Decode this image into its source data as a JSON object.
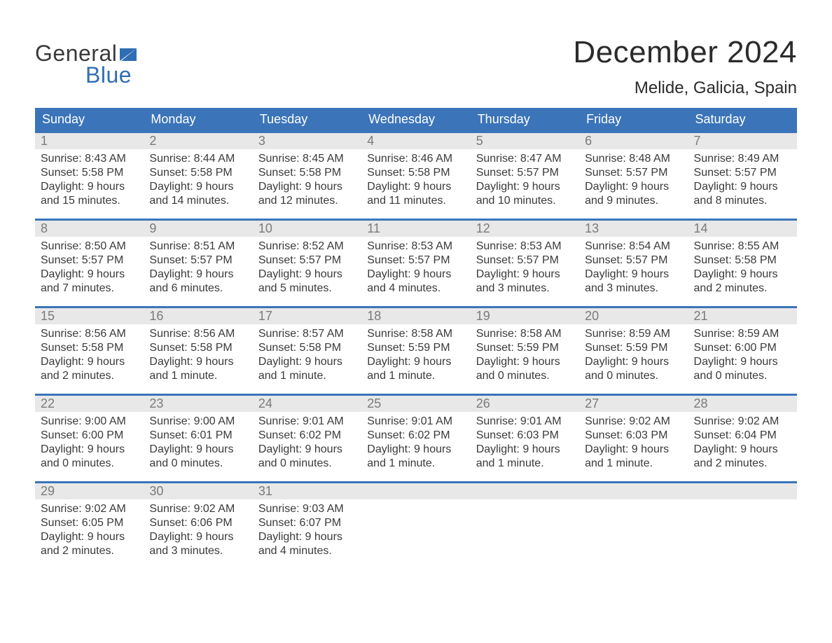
{
  "logo": {
    "text_general": "General",
    "text_blue": "Blue",
    "flag_color": "#2f6eb5"
  },
  "title": "December 2024",
  "location": "Melide, Galicia, Spain",
  "colors": {
    "header_bg": "#3b74b9",
    "header_text": "#ffffff",
    "row_border": "#3b74b9",
    "daynum_bg": "#e8e8e8",
    "daynum_text": "#7a7a7a",
    "body_text": "#3a3a3a",
    "page_bg": "#ffffff",
    "logo_blue": "#2f6eb5"
  },
  "typography": {
    "title_fontsize": 44,
    "location_fontsize": 24,
    "dow_fontsize": 18,
    "daynum_fontsize": 18,
    "body_fontsize": 16,
    "logo_fontsize": 32
  },
  "days_of_week": [
    "Sunday",
    "Monday",
    "Tuesday",
    "Wednesday",
    "Thursday",
    "Friday",
    "Saturday"
  ],
  "weeks": [
    [
      {
        "n": "1",
        "sr": "Sunrise: 8:43 AM",
        "ss": "Sunset: 5:58 PM",
        "dl1": "Daylight: 9 hours",
        "dl2": "and 15 minutes."
      },
      {
        "n": "2",
        "sr": "Sunrise: 8:44 AM",
        "ss": "Sunset: 5:58 PM",
        "dl1": "Daylight: 9 hours",
        "dl2": "and 14 minutes."
      },
      {
        "n": "3",
        "sr": "Sunrise: 8:45 AM",
        "ss": "Sunset: 5:58 PM",
        "dl1": "Daylight: 9 hours",
        "dl2": "and 12 minutes."
      },
      {
        "n": "4",
        "sr": "Sunrise: 8:46 AM",
        "ss": "Sunset: 5:58 PM",
        "dl1": "Daylight: 9 hours",
        "dl2": "and 11 minutes."
      },
      {
        "n": "5",
        "sr": "Sunrise: 8:47 AM",
        "ss": "Sunset: 5:57 PM",
        "dl1": "Daylight: 9 hours",
        "dl2": "and 10 minutes."
      },
      {
        "n": "6",
        "sr": "Sunrise: 8:48 AM",
        "ss": "Sunset: 5:57 PM",
        "dl1": "Daylight: 9 hours",
        "dl2": "and 9 minutes."
      },
      {
        "n": "7",
        "sr": "Sunrise: 8:49 AM",
        "ss": "Sunset: 5:57 PM",
        "dl1": "Daylight: 9 hours",
        "dl2": "and 8 minutes."
      }
    ],
    [
      {
        "n": "8",
        "sr": "Sunrise: 8:50 AM",
        "ss": "Sunset: 5:57 PM",
        "dl1": "Daylight: 9 hours",
        "dl2": "and 7 minutes."
      },
      {
        "n": "9",
        "sr": "Sunrise: 8:51 AM",
        "ss": "Sunset: 5:57 PM",
        "dl1": "Daylight: 9 hours",
        "dl2": "and 6 minutes."
      },
      {
        "n": "10",
        "sr": "Sunrise: 8:52 AM",
        "ss": "Sunset: 5:57 PM",
        "dl1": "Daylight: 9 hours",
        "dl2": "and 5 minutes."
      },
      {
        "n": "11",
        "sr": "Sunrise: 8:53 AM",
        "ss": "Sunset: 5:57 PM",
        "dl1": "Daylight: 9 hours",
        "dl2": "and 4 minutes."
      },
      {
        "n": "12",
        "sr": "Sunrise: 8:53 AM",
        "ss": "Sunset: 5:57 PM",
        "dl1": "Daylight: 9 hours",
        "dl2": "and 3 minutes."
      },
      {
        "n": "13",
        "sr": "Sunrise: 8:54 AM",
        "ss": "Sunset: 5:57 PM",
        "dl1": "Daylight: 9 hours",
        "dl2": "and 3 minutes."
      },
      {
        "n": "14",
        "sr": "Sunrise: 8:55 AM",
        "ss": "Sunset: 5:58 PM",
        "dl1": "Daylight: 9 hours",
        "dl2": "and 2 minutes."
      }
    ],
    [
      {
        "n": "15",
        "sr": "Sunrise: 8:56 AM",
        "ss": "Sunset: 5:58 PM",
        "dl1": "Daylight: 9 hours",
        "dl2": "and 2 minutes."
      },
      {
        "n": "16",
        "sr": "Sunrise: 8:56 AM",
        "ss": "Sunset: 5:58 PM",
        "dl1": "Daylight: 9 hours",
        "dl2": "and 1 minute."
      },
      {
        "n": "17",
        "sr": "Sunrise: 8:57 AM",
        "ss": "Sunset: 5:58 PM",
        "dl1": "Daylight: 9 hours",
        "dl2": "and 1 minute."
      },
      {
        "n": "18",
        "sr": "Sunrise: 8:58 AM",
        "ss": "Sunset: 5:59 PM",
        "dl1": "Daylight: 9 hours",
        "dl2": "and 1 minute."
      },
      {
        "n": "19",
        "sr": "Sunrise: 8:58 AM",
        "ss": "Sunset: 5:59 PM",
        "dl1": "Daylight: 9 hours",
        "dl2": "and 0 minutes."
      },
      {
        "n": "20",
        "sr": "Sunrise: 8:59 AM",
        "ss": "Sunset: 5:59 PM",
        "dl1": "Daylight: 9 hours",
        "dl2": "and 0 minutes."
      },
      {
        "n": "21",
        "sr": "Sunrise: 8:59 AM",
        "ss": "Sunset: 6:00 PM",
        "dl1": "Daylight: 9 hours",
        "dl2": "and 0 minutes."
      }
    ],
    [
      {
        "n": "22",
        "sr": "Sunrise: 9:00 AM",
        "ss": "Sunset: 6:00 PM",
        "dl1": "Daylight: 9 hours",
        "dl2": "and 0 minutes."
      },
      {
        "n": "23",
        "sr": "Sunrise: 9:00 AM",
        "ss": "Sunset: 6:01 PM",
        "dl1": "Daylight: 9 hours",
        "dl2": "and 0 minutes."
      },
      {
        "n": "24",
        "sr": "Sunrise: 9:01 AM",
        "ss": "Sunset: 6:02 PM",
        "dl1": "Daylight: 9 hours",
        "dl2": "and 0 minutes."
      },
      {
        "n": "25",
        "sr": "Sunrise: 9:01 AM",
        "ss": "Sunset: 6:02 PM",
        "dl1": "Daylight: 9 hours",
        "dl2": "and 1 minute."
      },
      {
        "n": "26",
        "sr": "Sunrise: 9:01 AM",
        "ss": "Sunset: 6:03 PM",
        "dl1": "Daylight: 9 hours",
        "dl2": "and 1 minute."
      },
      {
        "n": "27",
        "sr": "Sunrise: 9:02 AM",
        "ss": "Sunset: 6:03 PM",
        "dl1": "Daylight: 9 hours",
        "dl2": "and 1 minute."
      },
      {
        "n": "28",
        "sr": "Sunrise: 9:02 AM",
        "ss": "Sunset: 6:04 PM",
        "dl1": "Daylight: 9 hours",
        "dl2": "and 2 minutes."
      }
    ],
    [
      {
        "n": "29",
        "sr": "Sunrise: 9:02 AM",
        "ss": "Sunset: 6:05 PM",
        "dl1": "Daylight: 9 hours",
        "dl2": "and 2 minutes."
      },
      {
        "n": "30",
        "sr": "Sunrise: 9:02 AM",
        "ss": "Sunset: 6:06 PM",
        "dl1": "Daylight: 9 hours",
        "dl2": "and 3 minutes."
      },
      {
        "n": "31",
        "sr": "Sunrise: 9:03 AM",
        "ss": "Sunset: 6:07 PM",
        "dl1": "Daylight: 9 hours",
        "dl2": "and 4 minutes."
      },
      null,
      null,
      null,
      null
    ]
  ]
}
